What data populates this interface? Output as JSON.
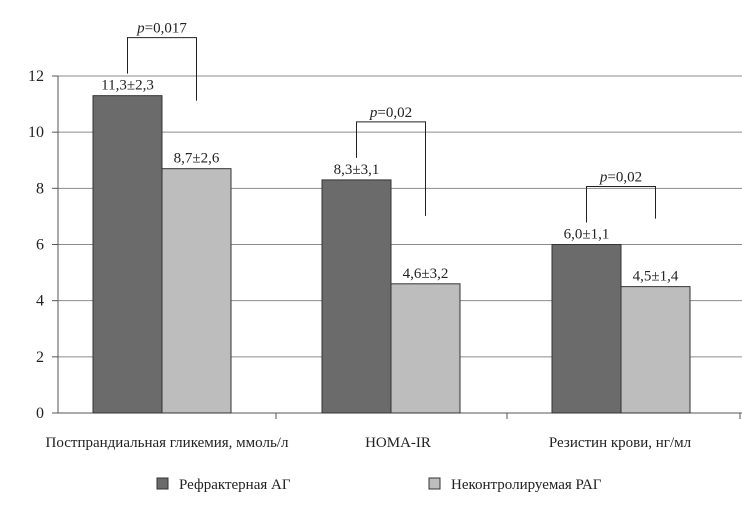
{
  "chart_data": {
    "type": "bar",
    "categories": [
      "Постпрандиальная гликемия, ммоль/л",
      "HOMA-IR",
      "Резистин крови, нг/мл"
    ],
    "series": [
      {
        "name": "Рефрактерная АГ",
        "values": [
          11.3,
          8.3,
          6.0
        ],
        "labels": [
          "11,3±2,3",
          "8,3±3,1",
          "6,0±1,1"
        ],
        "color": "#6b6b6b"
      },
      {
        "name": "Неконтролируемая РАГ",
        "values": [
          8.7,
          4.6,
          4.5
        ],
        "labels": [
          "8,7±2,6",
          "4,6±3,2",
          "4,5±1,4"
        ],
        "color": "#bdbdbd"
      }
    ],
    "p_values": [
      "=0,017",
      "=0,02",
      "=0,02"
    ],
    "p_symbol": "p",
    "yticks": [
      "0",
      "2",
      "4",
      "6",
      "8",
      "10",
      "12"
    ],
    "ylim": [
      0,
      12
    ],
    "grid": true,
    "legend_position": "bottom"
  }
}
